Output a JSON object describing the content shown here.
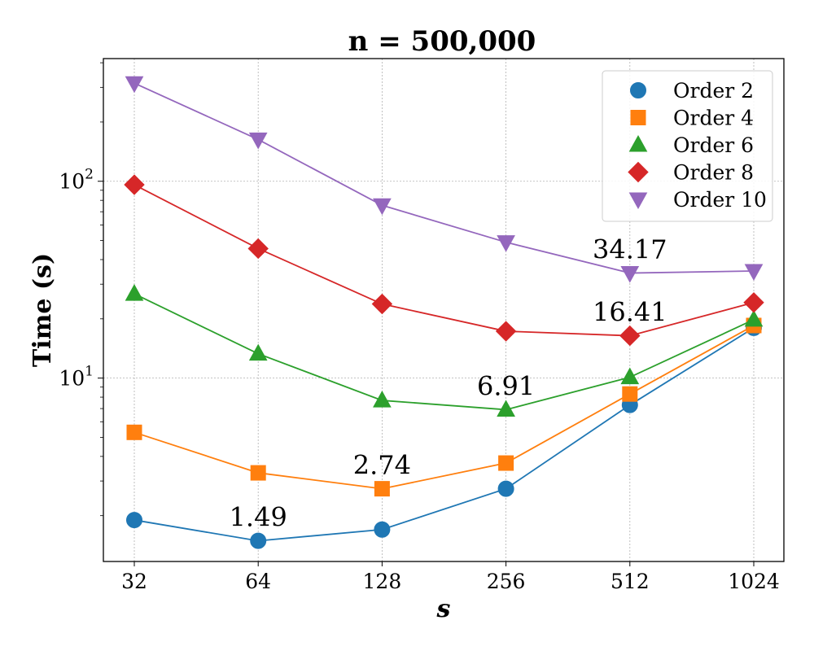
{
  "chart_data": {
    "type": "line",
    "title": "n = 500,000",
    "xlabel": "s",
    "ylabel": "Time (s)",
    "xscale": "log2",
    "yscale": "log",
    "grid": true,
    "legend_position": "top-right",
    "x": [
      32,
      64,
      128,
      256,
      512,
      1024
    ],
    "x_tick_labels": [
      "32",
      "64",
      "128",
      "256",
      "512",
      "1024"
    ],
    "y_tick_labels": [
      {
        "value": 10,
        "base": "10",
        "exp": "1"
      },
      {
        "value": 100,
        "base": "10",
        "exp": "2"
      }
    ],
    "ylim": [
      1.17,
      420
    ],
    "series": [
      {
        "name": "Order 2",
        "color": "#1f77b4",
        "marker": "circle",
        "values": [
          1.9,
          1.49,
          1.7,
          2.74,
          7.3,
          18.0
        ]
      },
      {
        "name": "Order 4",
        "color": "#ff7f0e",
        "marker": "square",
        "values": [
          5.3,
          3.3,
          2.74,
          3.7,
          8.3,
          18.5
        ]
      },
      {
        "name": "Order 6",
        "color": "#2ca02c",
        "marker": "triangle-up",
        "values": [
          26.8,
          13.3,
          7.7,
          6.91,
          10.1,
          19.8
        ]
      },
      {
        "name": "Order 8",
        "color": "#d62728",
        "marker": "diamond",
        "values": [
          96.0,
          45.5,
          23.8,
          17.3,
          16.41,
          24.2
        ]
      },
      {
        "name": "Order 10",
        "color": "#9467bd",
        "marker": "triangle-down",
        "values": [
          315.0,
          163.0,
          75.5,
          49.0,
          34.17,
          35.0
        ]
      }
    ],
    "annotations": [
      {
        "text": "1.49",
        "x": 64,
        "y": 1.49
      },
      {
        "text": "2.74",
        "x": 128,
        "y": 2.74
      },
      {
        "text": "6.91",
        "x": 256,
        "y": 6.91
      },
      {
        "text": "16.41",
        "x": 512,
        "y": 16.41
      },
      {
        "text": "34.17",
        "x": 512,
        "y": 34.17
      }
    ]
  }
}
